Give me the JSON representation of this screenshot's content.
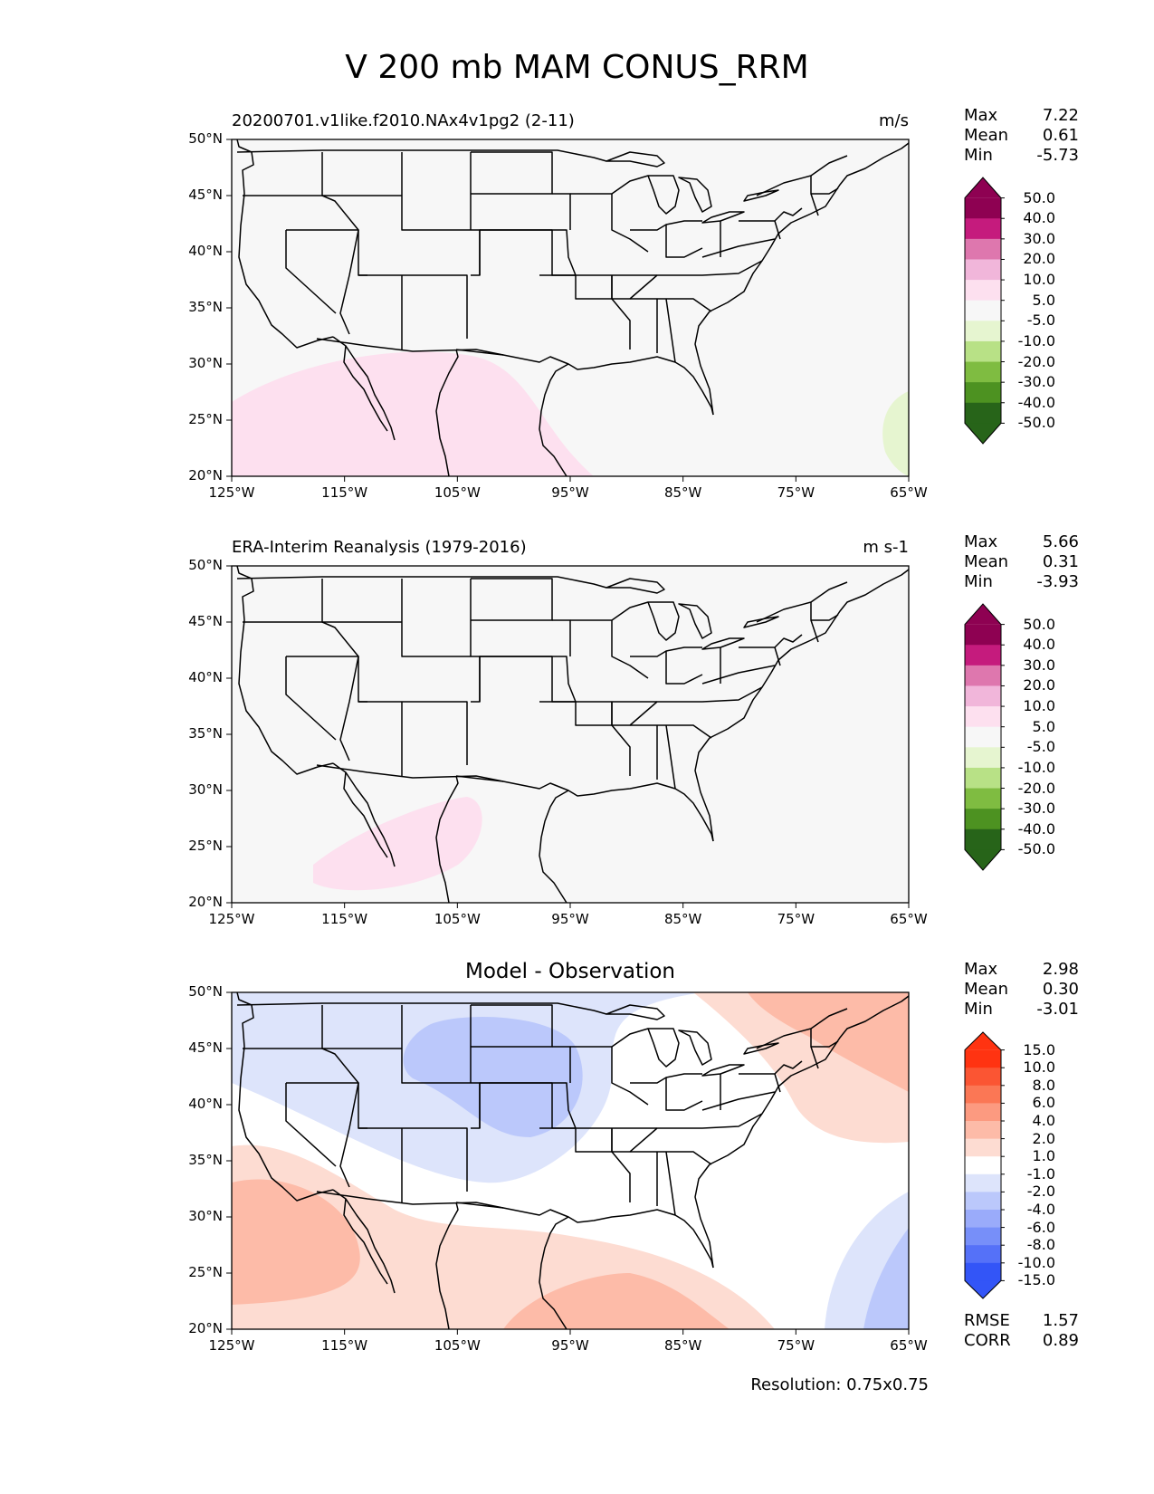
{
  "title": "V 200 mb MAM CONUS_RRM",
  "lon_ticks": [
    "125°W",
    "115°W",
    "105°W",
    "95°W",
    "85°W",
    "75°W",
    "65°W"
  ],
  "lat_ticks": [
    "50°N",
    "45°N",
    "40°N",
    "35°N",
    "30°N",
    "25°N",
    "20°N"
  ],
  "panels": [
    {
      "title": "20200701.v1like.f2010.NAx4v1pg2 (2-11)",
      "units": "m/s",
      "stats": {
        "max_label": "Max",
        "max": "7.22",
        "mean_label": "Mean",
        "mean": "0.61",
        "min_label": "Min",
        "min": "-5.73"
      },
      "colorbar": {
        "labels": [
          "50.0",
          "40.0",
          "30.0",
          "20.0",
          "10.0",
          "5.0",
          "-5.0",
          "-10.0",
          "-20.0",
          "-30.0",
          "-40.0",
          "-50.0"
        ],
        "colors": [
          "#8e0152",
          "#c51b7d",
          "#de77ae",
          "#f1b6da",
          "#fde0ef",
          "#f7f7f7",
          "#e6f5d0",
          "#b8e186",
          "#7fbc41",
          "#4d9221",
          "#276419"
        ]
      }
    },
    {
      "title": "ERA-Interim Reanalysis (1979-2016)",
      "units": "m s-1",
      "stats": {
        "max_label": "Max",
        "max": "5.66",
        "mean_label": "Mean",
        "mean": "0.31",
        "min_label": "Min",
        "min": "-3.93"
      },
      "colorbar": {
        "labels": [
          "50.0",
          "40.0",
          "30.0",
          "20.0",
          "10.0",
          "5.0",
          "-5.0",
          "-10.0",
          "-20.0",
          "-30.0",
          "-40.0",
          "-50.0"
        ],
        "colors": [
          "#8e0152",
          "#c51b7d",
          "#de77ae",
          "#f1b6da",
          "#fde0ef",
          "#f7f7f7",
          "#e6f5d0",
          "#b8e186",
          "#7fbc41",
          "#4d9221",
          "#276419"
        ]
      }
    },
    {
      "title": "Model - Observation",
      "stats": {
        "max_label": "Max",
        "max": "2.98",
        "mean_label": "Mean",
        "mean": "0.30",
        "min_label": "Min",
        "min": "-3.01"
      },
      "colorbar": {
        "labels": [
          "15.0",
          "10.0",
          "8.0",
          "6.0",
          "4.0",
          "2.0",
          "1.0",
          "-1.0",
          "-2.0",
          "-4.0",
          "-6.0",
          "-8.0",
          "-10.0",
          "-15.0"
        ],
        "colors": [
          "#ff3311",
          "#fb5533",
          "#fb7755",
          "#fc9a80",
          "#fdbba8",
          "#fddcd2",
          "#ffffff",
          "#dde4fb",
          "#bbc8fb",
          "#9aabfa",
          "#778ff9",
          "#5571f8",
          "#3355f7"
        ]
      },
      "extra_stats": {
        "rmse_label": "RMSE",
        "rmse": "1.57",
        "corr_label": "CORR",
        "corr": "0.89"
      }
    }
  ],
  "footer": {
    "resolution": "Resolution: 0.75x0.75"
  },
  "colors": {
    "land": "#f7f7f7",
    "pink": "#fde0ef",
    "green": "#e6f5d0",
    "diff_blue_1": "#dde4fb",
    "diff_blue_2": "#bbc8fb",
    "diff_red_1": "#fddcd2",
    "diff_red_2": "#fdbba8"
  }
}
